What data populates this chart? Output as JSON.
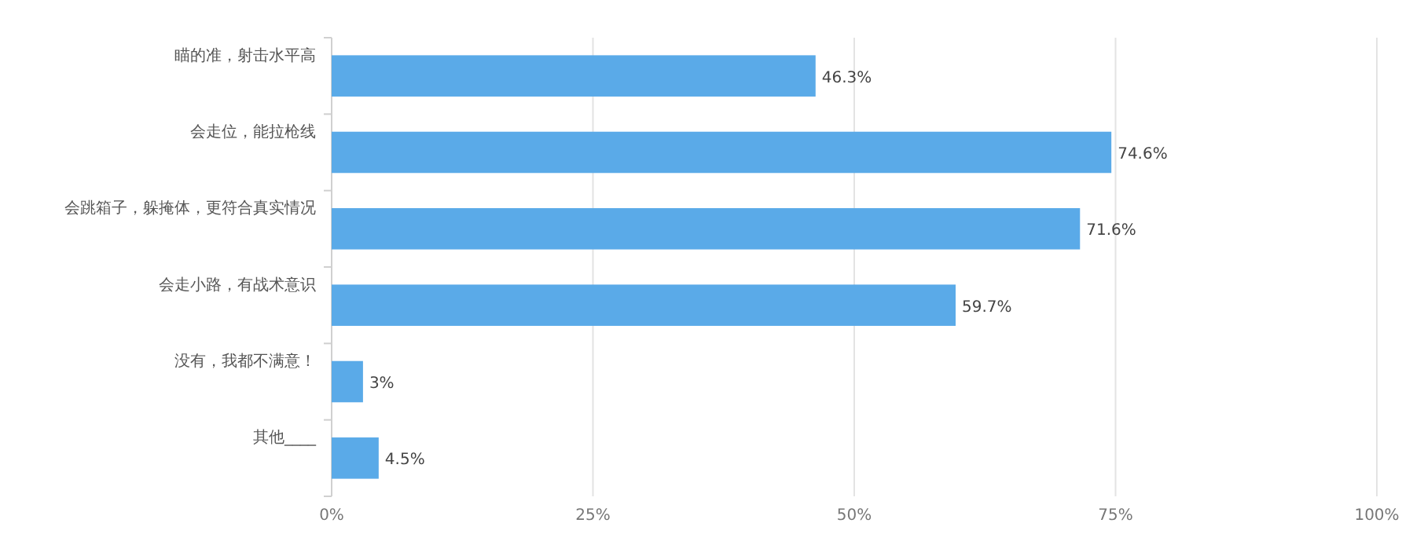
{
  "chart_data": {
    "type": "bar",
    "orientation": "horizontal",
    "categories": [
      "瞄的准，射击水平高",
      "会走位，能拉枪线",
      "会跳箱子，躲掩体，更符合真实情况",
      "会走小路，有战术意识",
      "没有，我都不满意！",
      "其他____"
    ],
    "values": [
      46.3,
      74.6,
      71.6,
      59.7,
      3,
      4.5
    ],
    "color": "#5aaae8",
    "xlim": [
      0,
      100
    ],
    "xticks": [
      {
        "value": 0,
        "label": "0%"
      },
      {
        "value": 25,
        "label": "25%"
      },
      {
        "value": 50,
        "label": "50%"
      },
      {
        "value": 75,
        "label": "75%"
      },
      {
        "value": 100,
        "label": "100%"
      }
    ],
    "grid": "x",
    "value_labels": [
      "46.3%",
      "74.6%",
      "71.6%",
      "59.7%",
      "3%",
      "4.5%"
    ]
  }
}
